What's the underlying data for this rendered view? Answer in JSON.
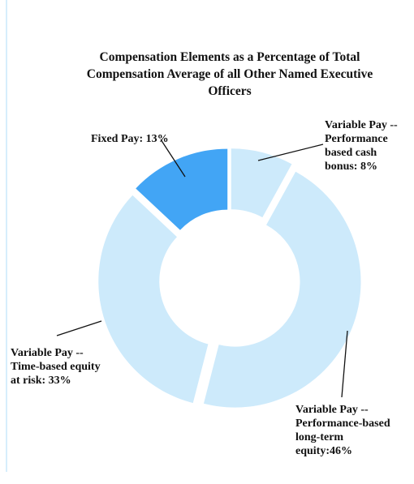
{
  "chart_data": {
    "type": "donut",
    "title": "Compensation Elements as a Percentage of Total Compensation Average of all Other Named Executive Officers",
    "values": [
      8,
      46,
      33,
      13
    ],
    "value_labels": [
      "Variable Pay -- Performance based cash bonus: 8%",
      "Variable Pay -- Performance-based long-term equity:46%",
      "Variable Pay -- Time-based equity at risk: 33%",
      "Fixed Pay: 13%"
    ],
    "colors": [
      "#cdeafb",
      "#cdeafb",
      "#cdeafb",
      "#42a5f5"
    ]
  }
}
